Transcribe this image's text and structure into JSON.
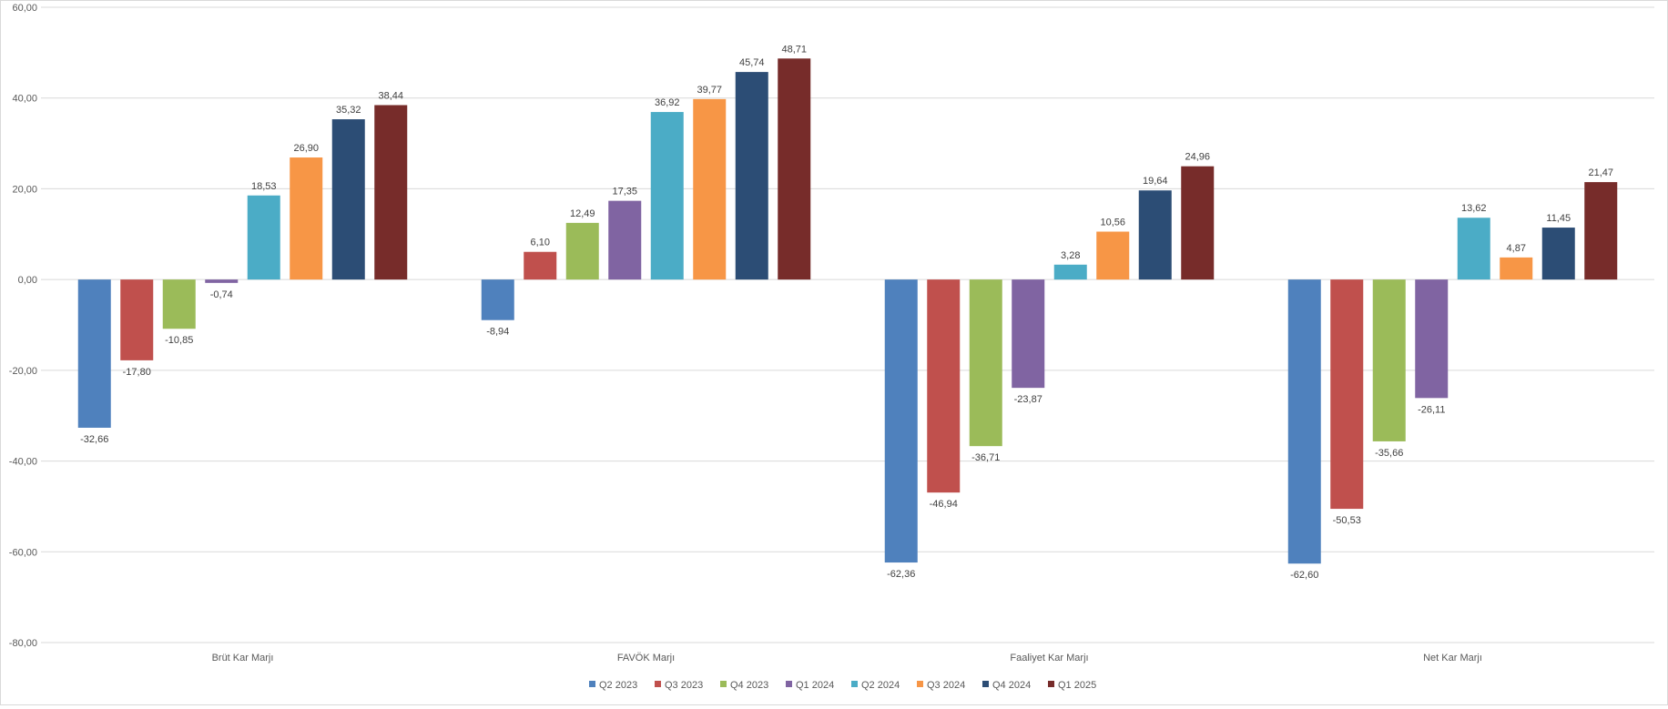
{
  "chart_data": {
    "type": "bar",
    "title": "",
    "xlabel": "",
    "ylabel": "",
    "ylim": [
      -80,
      60
    ],
    "yticks": [
      60,
      40,
      20,
      0,
      -20,
      -40,
      -60,
      -80
    ],
    "ytick_labels": [
      "60,00",
      "40,00",
      "20,00",
      "0,00",
      "-20,00",
      "-40,00",
      "-60,00",
      "-80,00"
    ],
    "grid": true,
    "legend_position": "bottom",
    "categories": [
      "Brüt Kar Marjı",
      "FAVÖK Marjı",
      "Faaliyet Kar Marjı",
      "Net Kar Marjı"
    ],
    "series": [
      {
        "name": "Q2 2023",
        "color": "#4f81bd",
        "values": [
          -32.66,
          -8.94,
          -62.36,
          -62.6
        ],
        "labels": [
          "-32,66",
          "-8,94",
          "-62,36",
          "-62,60"
        ]
      },
      {
        "name": "Q3 2023",
        "color": "#c0504d",
        "values": [
          -17.8,
          6.1,
          -46.94,
          -50.53
        ],
        "labels": [
          "-17,80",
          "6,10",
          "-46,94",
          "-50,53"
        ]
      },
      {
        "name": "Q4 2023",
        "color": "#9bbb59",
        "values": [
          -10.85,
          12.49,
          -36.71,
          -35.66
        ],
        "labels": [
          "-10,85",
          "12,49",
          "-36,71",
          "-35,66"
        ]
      },
      {
        "name": "Q1 2024",
        "color": "#8064a2",
        "values": [
          -0.74,
          17.35,
          -23.87,
          -26.11
        ],
        "labels": [
          "-0,74",
          "17,35",
          "-23,87",
          "-26,11"
        ]
      },
      {
        "name": "Q2 2024",
        "color": "#4bacc6",
        "values": [
          18.53,
          36.92,
          3.28,
          13.62
        ],
        "labels": [
          "18,53",
          "36,92",
          "3,28",
          "13,62"
        ]
      },
      {
        "name": "Q3 2024",
        "color": "#f79646",
        "values": [
          26.9,
          39.77,
          10.56,
          4.87
        ],
        "labels": [
          "26,90",
          "39,77",
          "10,56",
          "4,87"
        ]
      },
      {
        "name": "Q4 2024",
        "color": "#2c4d75",
        "values": [
          35.32,
          45.74,
          19.64,
          11.45
        ],
        "labels": [
          "35,32",
          "45,74",
          "19,64",
          "11,45"
        ]
      },
      {
        "name": "Q1 2025",
        "color": "#772c2a",
        "values": [
          38.44,
          48.71,
          24.96,
          21.47
        ],
        "labels": [
          "38,44",
          "48,71",
          "24,96",
          "21,47"
        ]
      }
    ]
  }
}
